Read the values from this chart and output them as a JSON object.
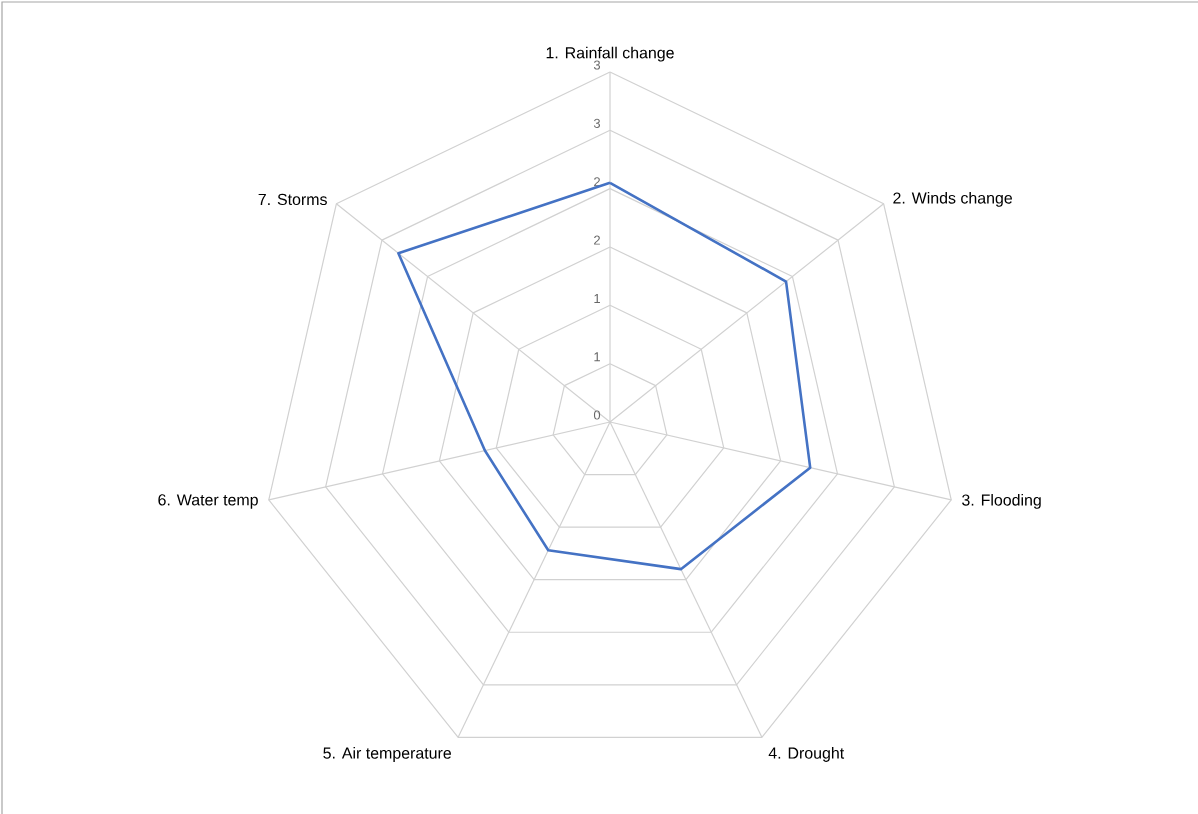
{
  "chart_data": {
    "type": "radar",
    "categories": [
      "1. Rainfall change",
      "2. Winds change",
      "3. Flooding",
      "4. Drought",
      "5. Air temperature",
      "6. Water temp",
      "7. Storms"
    ],
    "series": [
      {
        "color": "#4472c4",
        "values": [
          2.05,
          1.93,
          1.76,
          1.4,
          1.22,
          1.1,
          2.32
        ]
      }
    ],
    "ylim": [
      0,
      3
    ],
    "yticks": [
      0,
      {
        "value": 0.5,
        "label": "1"
      },
      1,
      {
        "value": 1.5,
        "label": "2"
      },
      2,
      {
        "value": 2.5,
        "label": "3"
      },
      3
    ],
    "grid": true
  }
}
